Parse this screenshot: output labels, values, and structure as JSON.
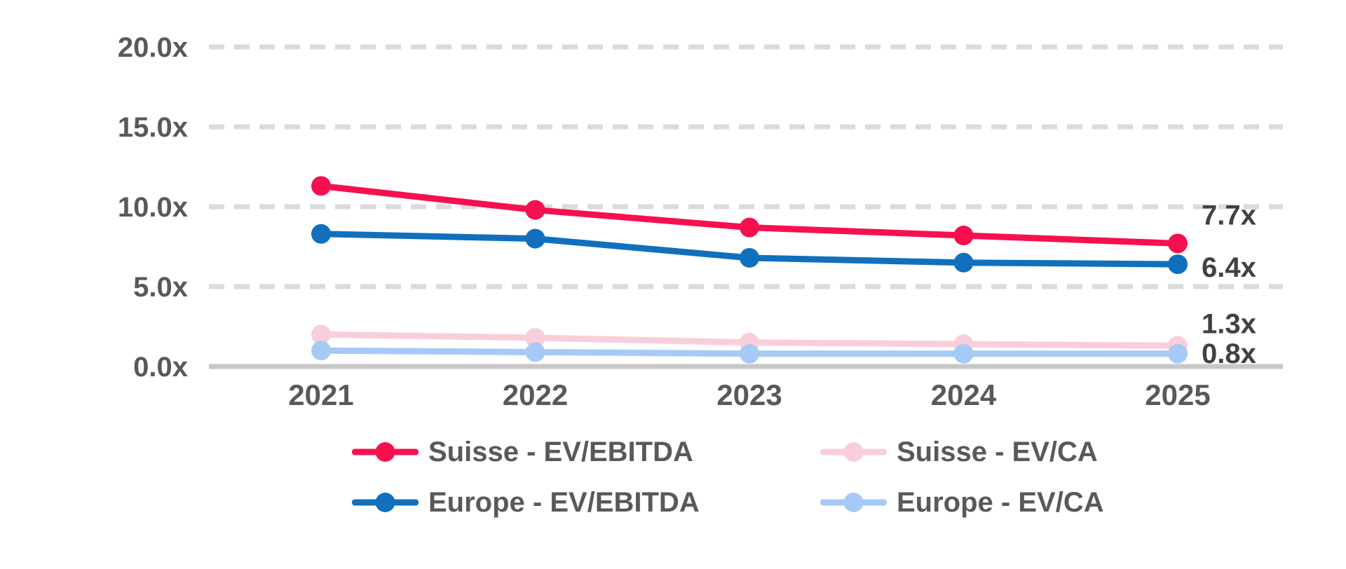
{
  "chart_data": {
    "type": "line",
    "title": "",
    "categories": [
      "2021",
      "2022",
      "2023",
      "2024",
      "2025"
    ],
    "y_axis": {
      "ticks": [
        {
          "label": "0.0x",
          "value": 0
        },
        {
          "label": "5.0x",
          "value": 5
        },
        {
          "label": "10.0x",
          "value": 10
        },
        {
          "label": "15.0x",
          "value": 15
        },
        {
          "label": "20.0x",
          "value": 20
        }
      ],
      "ylim": [
        0,
        20
      ],
      "gridlines": "dashed"
    },
    "series": [
      {
        "name": "Suisse - EV/EBITDA",
        "color": "#F7104E",
        "values": [
          11.3,
          9.8,
          8.7,
          8.2,
          7.7
        ],
        "end_label": "7.7x",
        "end_label_dy": -41
      },
      {
        "name": "Suisse - EV/CA",
        "color": "#F9CEDB",
        "values": [
          2.0,
          1.8,
          1.5,
          1.4,
          1.3
        ],
        "end_label": "1.3x",
        "end_label_dy": -32
      },
      {
        "name": "Europe - EV/EBITDA",
        "color": "#1070BD",
        "values": [
          8.3,
          8.0,
          6.8,
          6.5,
          6.4
        ],
        "end_label": "6.4x",
        "end_label_dy": 4
      },
      {
        "name": "Europe - EV/CA",
        "color": "#A6CAF6",
        "values": [
          1.0,
          0.9,
          0.8,
          0.8,
          0.8
        ],
        "end_label": "0.8x",
        "end_label_dy": -1
      }
    ],
    "legend_position": "bottom"
  },
  "colors": {
    "grid": "#DBDBDB",
    "axis": "#C7C7C7",
    "tick_text": "#595959",
    "year_text": "#595959",
    "legend_text": "#595959",
    "end_label_text": "#414141",
    "background": "#FFFFFF"
  }
}
